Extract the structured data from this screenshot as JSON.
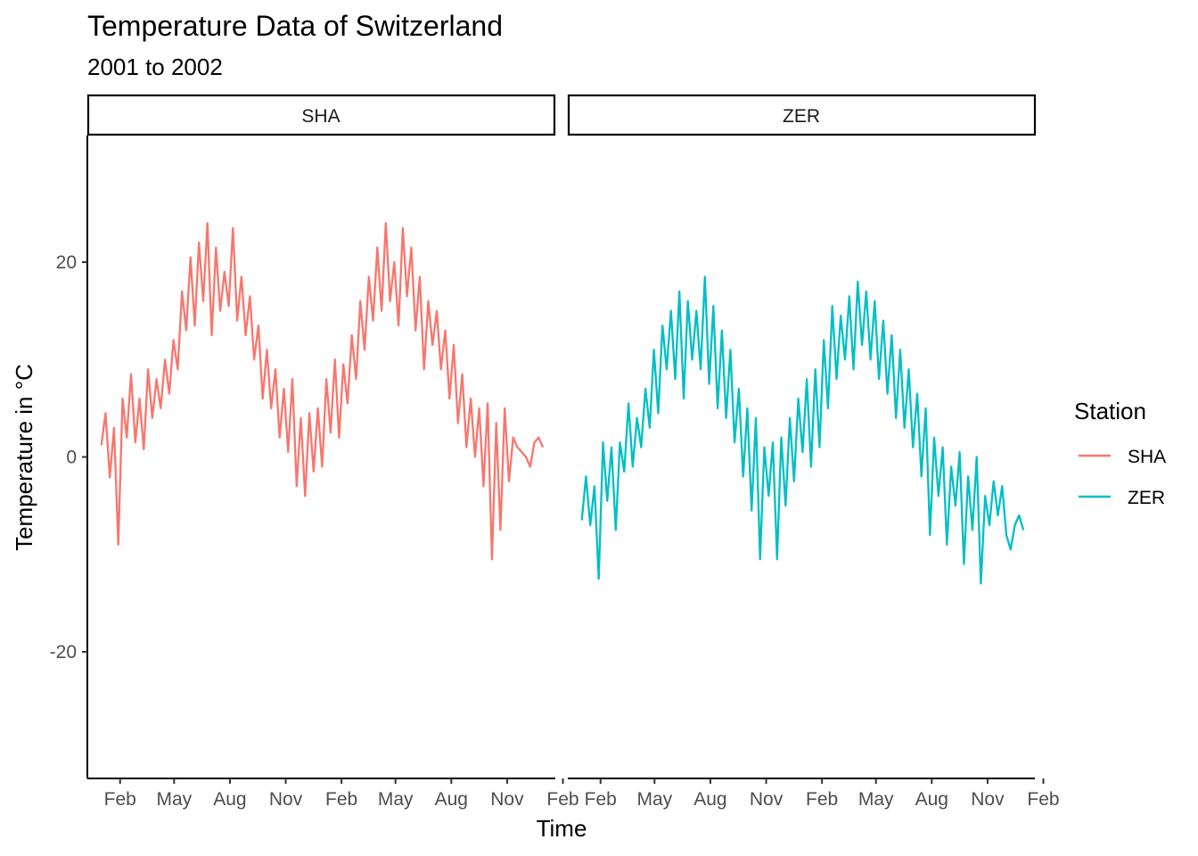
{
  "chart_data": {
    "type": "line",
    "title": "Temperature Data of Switzerland",
    "subtitle": "2001 to 2002",
    "xlabel": "Time",
    "ylabel": "Temperature in °C",
    "ylim": [
      -33,
      33
    ],
    "yticks": [
      -20,
      0,
      20
    ],
    "xticks": [
      "Feb",
      "May",
      "Aug",
      "Nov",
      "Feb",
      "May",
      "Aug",
      "Nov",
      "Feb"
    ],
    "xlim": [
      "2000-12-09",
      "2003-01-18"
    ],
    "grid": false,
    "legend": {
      "title": "Station",
      "position": "right"
    },
    "facets": [
      "SHA",
      "ZER"
    ],
    "colors": {
      "SHA": "#F8766D",
      "ZER": "#00BFC4"
    },
    "series": [
      {
        "name": "SHA",
        "x": [
          "2001-01-01",
          "2001-01-08",
          "2001-01-15",
          "2001-01-22",
          "2001-01-29",
          "2001-02-05",
          "2001-02-12",
          "2001-02-19",
          "2001-02-26",
          "2001-03-05",
          "2001-03-12",
          "2001-03-19",
          "2001-03-26",
          "2001-04-02",
          "2001-04-09",
          "2001-04-16",
          "2001-04-23",
          "2001-04-30",
          "2001-05-07",
          "2001-05-14",
          "2001-05-21",
          "2001-05-28",
          "2001-06-04",
          "2001-06-11",
          "2001-06-18",
          "2001-06-25",
          "2001-07-02",
          "2001-07-09",
          "2001-07-16",
          "2001-07-23",
          "2001-07-30",
          "2001-08-06",
          "2001-08-13",
          "2001-08-20",
          "2001-08-27",
          "2001-09-03",
          "2001-09-10",
          "2001-09-17",
          "2001-09-24",
          "2001-10-01",
          "2001-10-08",
          "2001-10-15",
          "2001-10-22",
          "2001-10-29",
          "2001-11-05",
          "2001-11-12",
          "2001-11-19",
          "2001-11-26",
          "2001-12-03",
          "2001-12-10",
          "2001-12-17",
          "2001-12-24",
          "2001-12-31",
          "2002-01-07",
          "2002-01-14",
          "2002-01-21",
          "2002-01-28",
          "2002-02-04",
          "2002-02-11",
          "2002-02-18",
          "2002-02-25",
          "2002-03-04",
          "2002-03-11",
          "2002-03-18",
          "2002-03-25",
          "2002-04-01",
          "2002-04-08",
          "2002-04-15",
          "2002-04-22",
          "2002-04-29",
          "2002-05-06",
          "2002-05-13",
          "2002-05-20",
          "2002-05-27",
          "2002-06-03",
          "2002-06-10",
          "2002-06-17",
          "2002-06-24",
          "2002-07-01",
          "2002-07-08",
          "2002-07-15",
          "2002-07-22",
          "2002-07-29",
          "2002-08-05",
          "2002-08-12",
          "2002-08-19",
          "2002-08-26",
          "2002-09-02",
          "2002-09-09",
          "2002-09-16",
          "2002-09-23",
          "2002-09-30",
          "2002-10-07",
          "2002-10-14",
          "2002-10-21",
          "2002-10-28",
          "2002-11-04",
          "2002-11-11",
          "2002-11-18",
          "2002-11-25",
          "2002-12-02",
          "2002-12-09",
          "2002-12-16",
          "2002-12-23",
          "2002-12-30"
        ],
        "values": [
          1.2,
          4.5,
          -2.1,
          3.0,
          -9.0,
          6.0,
          2.0,
          8.5,
          1.5,
          6.0,
          0.8,
          9.0,
          4.0,
          8.0,
          5.0,
          10.0,
          6.5,
          12.0,
          9.0,
          17.0,
          13.0,
          20.5,
          13.5,
          22.0,
          16.0,
          24.0,
          12.5,
          21.5,
          15.0,
          19.0,
          15.5,
          23.5,
          14.0,
          18.5,
          12.5,
          16.5,
          10.0,
          13.5,
          6.0,
          11.0,
          5.0,
          9.0,
          2.0,
          7.0,
          0.5,
          8.0,
          -3.0,
          4.0,
          -4.0,
          4.5,
          -1.5,
          5.0,
          -1.0,
          8.0,
          2.5,
          10.0,
          2.0,
          9.5,
          5.5,
          12.5,
          8.0,
          16.0,
          11.0,
          18.5,
          14.0,
          21.5,
          15.0,
          24.0,
          16.0,
          20.0,
          13.5,
          23.5,
          16.5,
          21.5,
          13.0,
          18.5,
          9.0,
          16.0,
          11.5,
          15.0,
          9.0,
          13.0,
          6.0,
          11.5,
          3.5,
          8.5,
          1.0,
          6.0,
          0.0,
          5.0,
          -3.0,
          5.5,
          -10.5,
          3.5,
          -7.5,
          5.0,
          -2.5,
          2.0,
          1.0,
          0.5,
          0.0,
          -1.0,
          1.5,
          2.0,
          1.0
        ]
      },
      {
        "name": "ZER",
        "x": [
          "2001-01-01",
          "2001-01-08",
          "2001-01-15",
          "2001-01-22",
          "2001-01-29",
          "2001-02-05",
          "2001-02-12",
          "2001-02-19",
          "2001-02-26",
          "2001-03-05",
          "2001-03-12",
          "2001-03-19",
          "2001-03-26",
          "2001-04-02",
          "2001-04-09",
          "2001-04-16",
          "2001-04-23",
          "2001-04-30",
          "2001-05-07",
          "2001-05-14",
          "2001-05-21",
          "2001-05-28",
          "2001-06-04",
          "2001-06-11",
          "2001-06-18",
          "2001-06-25",
          "2001-07-02",
          "2001-07-09",
          "2001-07-16",
          "2001-07-23",
          "2001-07-30",
          "2001-08-06",
          "2001-08-13",
          "2001-08-20",
          "2001-08-27",
          "2001-09-03",
          "2001-09-10",
          "2001-09-17",
          "2001-09-24",
          "2001-10-01",
          "2001-10-08",
          "2001-10-15",
          "2001-10-22",
          "2001-10-29",
          "2001-11-05",
          "2001-11-12",
          "2001-11-19",
          "2001-11-26",
          "2001-12-03",
          "2001-12-10",
          "2001-12-17",
          "2001-12-24",
          "2001-12-31",
          "2002-01-07",
          "2002-01-14",
          "2002-01-21",
          "2002-01-28",
          "2002-02-04",
          "2002-02-11",
          "2002-02-18",
          "2002-02-25",
          "2002-03-04",
          "2002-03-11",
          "2002-03-18",
          "2002-03-25",
          "2002-04-01",
          "2002-04-08",
          "2002-04-15",
          "2002-04-22",
          "2002-04-29",
          "2002-05-06",
          "2002-05-13",
          "2002-05-20",
          "2002-05-27",
          "2002-06-03",
          "2002-06-10",
          "2002-06-17",
          "2002-06-24",
          "2002-07-01",
          "2002-07-08",
          "2002-07-15",
          "2002-07-22",
          "2002-07-29",
          "2002-08-05",
          "2002-08-12",
          "2002-08-19",
          "2002-08-26",
          "2002-09-02",
          "2002-09-09",
          "2002-09-16",
          "2002-09-23",
          "2002-09-30",
          "2002-10-07",
          "2002-10-14",
          "2002-10-21",
          "2002-10-28",
          "2002-11-04",
          "2002-11-11",
          "2002-11-18",
          "2002-11-25",
          "2002-12-02",
          "2002-12-09",
          "2002-12-16",
          "2002-12-23",
          "2002-12-30"
        ],
        "values": [
          -6.5,
          -2.0,
          -7.0,
          -3.0,
          -12.5,
          1.5,
          -4.5,
          1.0,
          -7.5,
          1.5,
          -1.5,
          5.5,
          -1.0,
          4.0,
          1.0,
          7.0,
          3.0,
          11.0,
          4.5,
          13.5,
          9.0,
          15.0,
          8.0,
          17.0,
          6.0,
          16.0,
          10.0,
          15.0,
          9.0,
          18.5,
          7.5,
          15.5,
          5.0,
          13.0,
          4.0,
          11.0,
          1.5,
          7.0,
          -2.0,
          5.0,
          -5.5,
          4.0,
          -10.5,
          1.0,
          -4.0,
          1.5,
          -10.5,
          2.0,
          -5.0,
          4.0,
          -2.5,
          6.0,
          0.5,
          8.0,
          -1.0,
          9.0,
          1.0,
          12.0,
          5.0,
          15.5,
          8.0,
          14.5,
          10.0,
          16.5,
          9.0,
          18.0,
          11.5,
          17.0,
          10.0,
          16.0,
          8.0,
          14.0,
          6.5,
          12.5,
          4.0,
          11.0,
          3.0,
          9.0,
          1.0,
          6.5,
          -2.0,
          5.0,
          -8.0,
          2.0,
          -4.0,
          1.0,
          -9.0,
          -1.0,
          -5.0,
          0.5,
          -11.0,
          -2.0,
          -7.5,
          0.0,
          -13.0,
          -4.0,
          -7.0,
          -2.5,
          -6.0,
          -3.0,
          -8.0,
          -9.5,
          -7.0,
          -6.0,
          -7.5
        ]
      }
    ]
  }
}
